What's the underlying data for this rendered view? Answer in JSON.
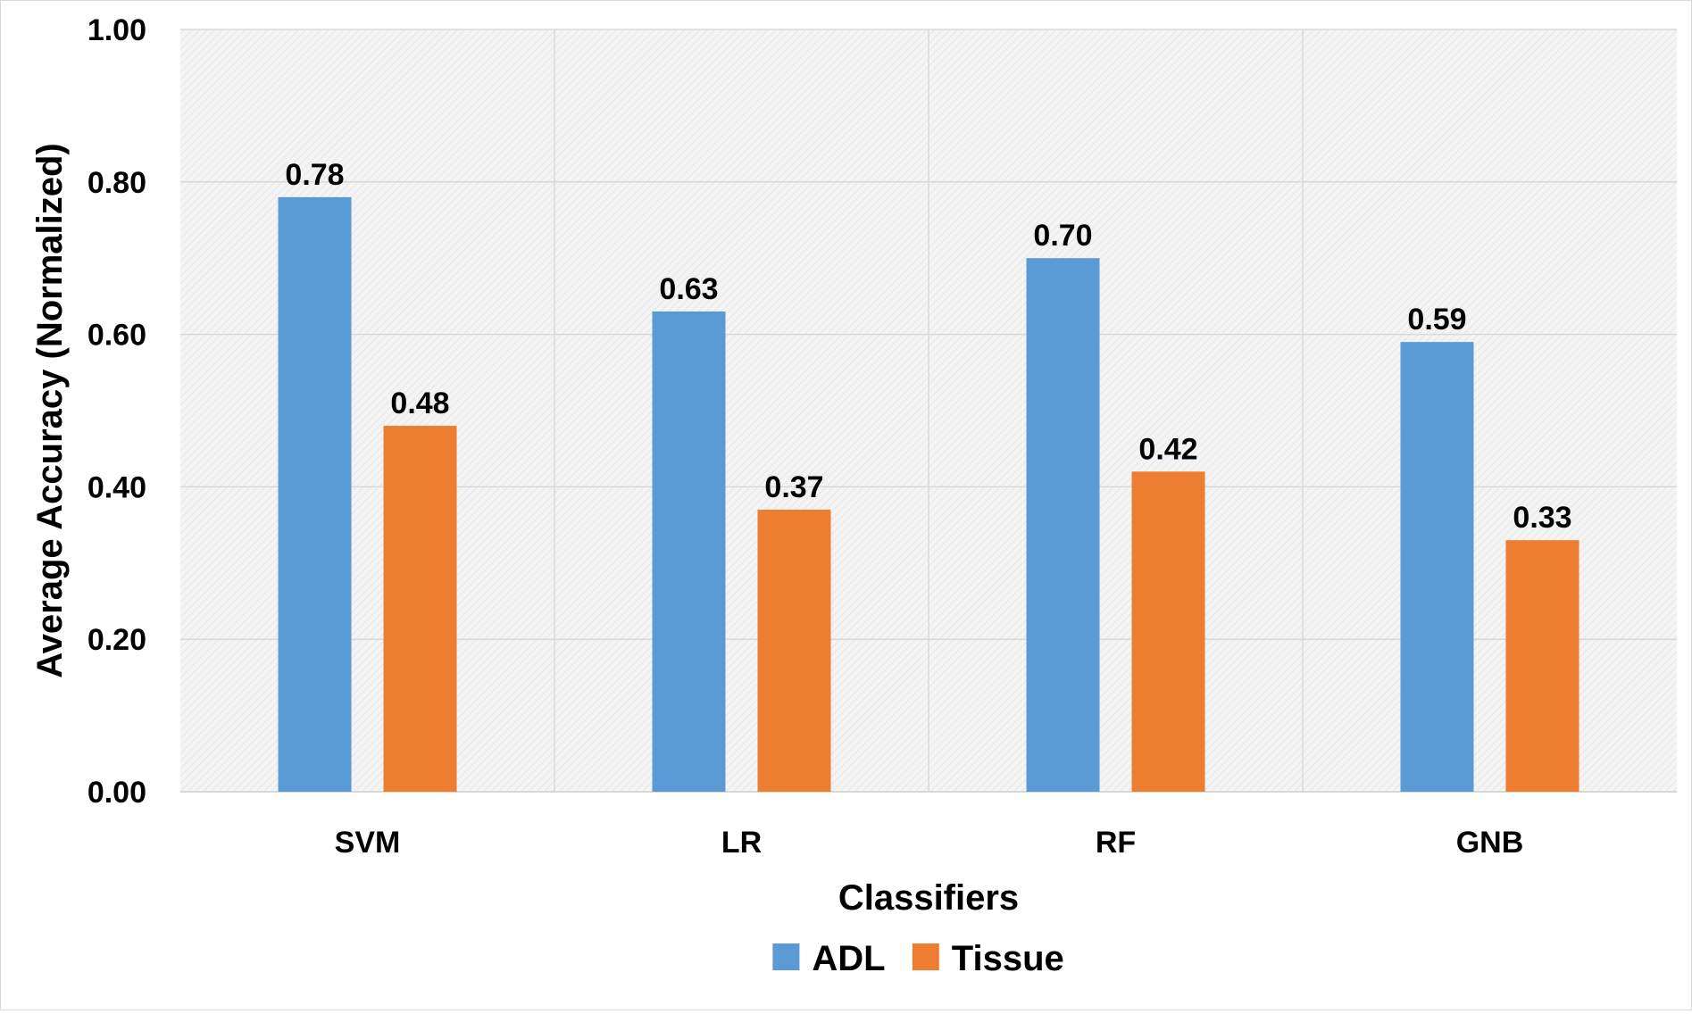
{
  "chart_data": {
    "type": "bar",
    "categories": [
      "SVM",
      "LR",
      "RF",
      "GNB"
    ],
    "series": [
      {
        "name": "ADL",
        "values": [
          0.78,
          0.63,
          0.7,
          0.59
        ],
        "labels": [
          "0.78",
          "0.63",
          "0.70",
          "0.59"
        ],
        "color": "#5b9bd5"
      },
      {
        "name": "Tissue",
        "values": [
          0.48,
          0.37,
          0.42,
          0.33
        ],
        "labels": [
          "0.48",
          "0.37",
          "0.42",
          "0.33"
        ],
        "color": "#ed7d31"
      }
    ],
    "title": "",
    "xlabel": "Classifiers",
    "ylabel": "Average Accuracy (Normalized)",
    "ylim": [
      0,
      1
    ],
    "yticks": [
      "0.00",
      "0.20",
      "0.40",
      "0.60",
      "0.80",
      "1.00"
    ],
    "grid": true,
    "legend_position": "bottom",
    "plot_background": "#f2f2f2",
    "gridline_color": "#d9d9d9"
  }
}
